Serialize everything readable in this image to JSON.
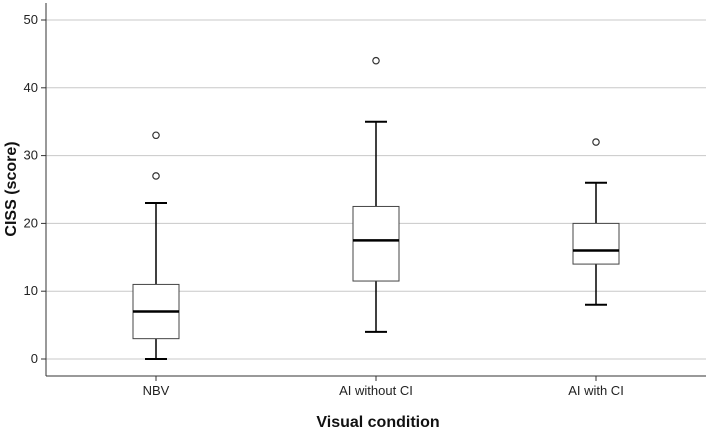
{
  "chart_data": {
    "type": "boxplot",
    "title": "",
    "xlabel": "Visual condition",
    "ylabel": "CISS (score)",
    "ylim": [
      -2,
      53
    ],
    "yticks": [
      0,
      10,
      20,
      30,
      40,
      50
    ],
    "grid": true,
    "categories": [
      "NBV",
      "AI without CI",
      "AI with CI"
    ],
    "boxes": [
      {
        "category": "NBV",
        "whisker_low": 0,
        "q1": 3,
        "median": 7,
        "q3": 11,
        "whisker_high": 23,
        "outliers": [
          27,
          33
        ]
      },
      {
        "category": "AI without CI",
        "whisker_low": 4,
        "q1": 11.5,
        "median": 17.5,
        "q3": 22.5,
        "whisker_high": 35,
        "outliers": [
          44
        ]
      },
      {
        "category": "AI with CI",
        "whisker_low": 8,
        "q1": 14,
        "median": 16,
        "q3": 20,
        "whisker_high": 26,
        "outliers": [
          32
        ]
      }
    ]
  }
}
